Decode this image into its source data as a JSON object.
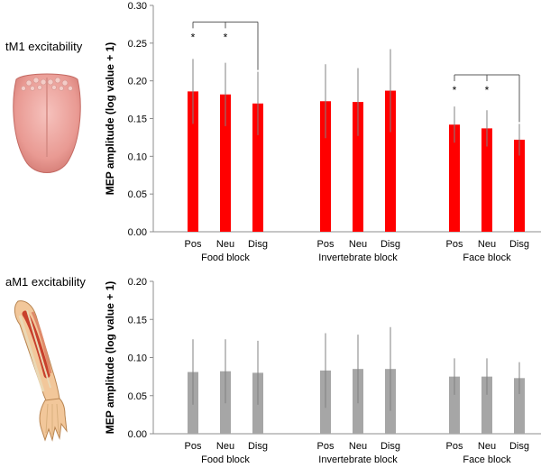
{
  "panels": {
    "top": {
      "label": "tM1 excitability"
    },
    "bottom": {
      "label": "aM1 excitability"
    }
  },
  "chart_data": [
    {
      "type": "bar",
      "panel": "tM1 excitability",
      "color": "#ff0000",
      "ylabel": "MEP amplitude (log value + 1)",
      "ylim": [
        0,
        0.3
      ],
      "yticks": [
        "0.00",
        "0.05",
        "0.10",
        "0.15",
        "0.20",
        "0.25",
        "0.30"
      ],
      "categories": [
        "Pos",
        "Neu",
        "Disg"
      ],
      "groups": [
        {
          "name": "Food block",
          "values": [
            0.186,
            0.182,
            0.17
          ],
          "errors": [
            0.043,
            0.042,
            0.042
          ]
        },
        {
          "name": "Invertebrate block",
          "values": [
            0.173,
            0.172,
            0.187
          ],
          "errors": [
            0.049,
            0.045,
            0.055
          ]
        },
        {
          "name": "Face block",
          "values": [
            0.142,
            0.137,
            0.122
          ],
          "errors": [
            0.024,
            0.024,
            0.021
          ]
        }
      ],
      "significance": [
        {
          "group": 0,
          "from": 0,
          "to": 2,
          "via": 1,
          "marks": "*",
          "level": 0.278
        },
        {
          "group": 2,
          "from": 0,
          "to": 2,
          "via": 1,
          "marks": "*",
          "level": 0.208
        }
      ]
    },
    {
      "type": "bar",
      "panel": "aM1 excitability",
      "color": "#a6a6a6",
      "ylabel": "MEP amplitude (log value + 1)",
      "ylim": [
        0,
        0.2
      ],
      "yticks": [
        "0.00",
        "0.05",
        "0.10",
        "0.15",
        "0.20"
      ],
      "categories": [
        "Pos",
        "Neu",
        "Disg"
      ],
      "groups": [
        {
          "name": "Food block",
          "values": [
            0.081,
            0.082,
            0.08
          ],
          "errors": [
            0.043,
            0.042,
            0.042
          ]
        },
        {
          "name": "Invertebrate block",
          "values": [
            0.083,
            0.085,
            0.085
          ],
          "errors": [
            0.049,
            0.045,
            0.055
          ]
        },
        {
          "name": "Face block",
          "values": [
            0.075,
            0.075,
            0.073
          ],
          "errors": [
            0.024,
            0.024,
            0.021
          ]
        }
      ],
      "significance": []
    }
  ]
}
